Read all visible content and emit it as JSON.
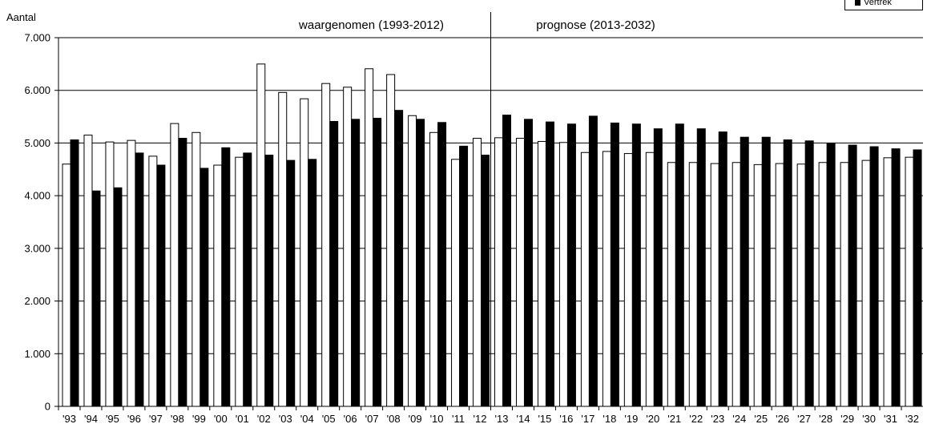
{
  "chart_data": {
    "type": "bar",
    "ylabel": "Aantal",
    "ylim": [
      0,
      7000
    ],
    "yticks": [
      "0",
      "1.000",
      "2.000",
      "3.000",
      "4.000",
      "5.000",
      "6.000",
      "7.000"
    ],
    "ytick_values": [
      0,
      1000,
      2000,
      3000,
      4000,
      5000,
      6000,
      7000
    ],
    "grid": true,
    "categories": [
      "'93",
      "'94",
      "'95",
      "'96",
      "'97",
      "'98",
      "'99",
      "'00",
      "'01",
      "'02",
      "'03",
      "'04",
      "'05",
      "'06",
      "'07",
      "'08",
      "'09",
      "'10",
      "'11",
      "'12",
      "'13",
      "'14",
      "'15",
      "'16",
      "'17",
      "'18",
      "'19",
      "'20",
      "'21",
      "'22",
      "'23",
      "'24",
      "'25",
      "'26",
      "'27",
      "'28",
      "'29",
      "'30",
      "'31",
      "'32"
    ],
    "series": [
      {
        "color": "#ffffff",
        "values": [
          4600,
          5150,
          5020,
          5050,
          4750,
          5370,
          5200,
          4580,
          4730,
          6500,
          5960,
          5840,
          6130,
          6060,
          6410,
          6300,
          5520,
          5200,
          4690,
          5090,
          5100,
          5090,
          5030,
          5010,
          4820,
          4840,
          4800,
          4820,
          4630,
          4630,
          4610,
          4630,
          4590,
          4610,
          4600,
          4630,
          4630,
          4670,
          4720,
          4730
        ]
      },
      {
        "name": "Vertrek",
        "color": "#000000",
        "values": [
          5060,
          4090,
          4150,
          4810,
          4580,
          5090,
          4520,
          4910,
          4810,
          4770,
          4670,
          4690,
          5410,
          5450,
          5470,
          5620,
          5450,
          5390,
          4940,
          4770,
          5530,
          5450,
          5400,
          5360,
          5510,
          5380,
          5360,
          5270,
          5360,
          5270,
          5210,
          5110,
          5110,
          5060,
          5040,
          4990,
          4960,
          4930,
          4890,
          4870
        ]
      }
    ],
    "annotations": [
      {
        "text": "waargenomen (1993-2012)",
        "span": "1993-2012"
      },
      {
        "text": "prognose (2013-2032)",
        "span": "2013-2032"
      }
    ],
    "divider_after_category": "'12",
    "legend": {
      "placement": "top-right",
      "entries": [
        "Vertrek"
      ]
    }
  }
}
